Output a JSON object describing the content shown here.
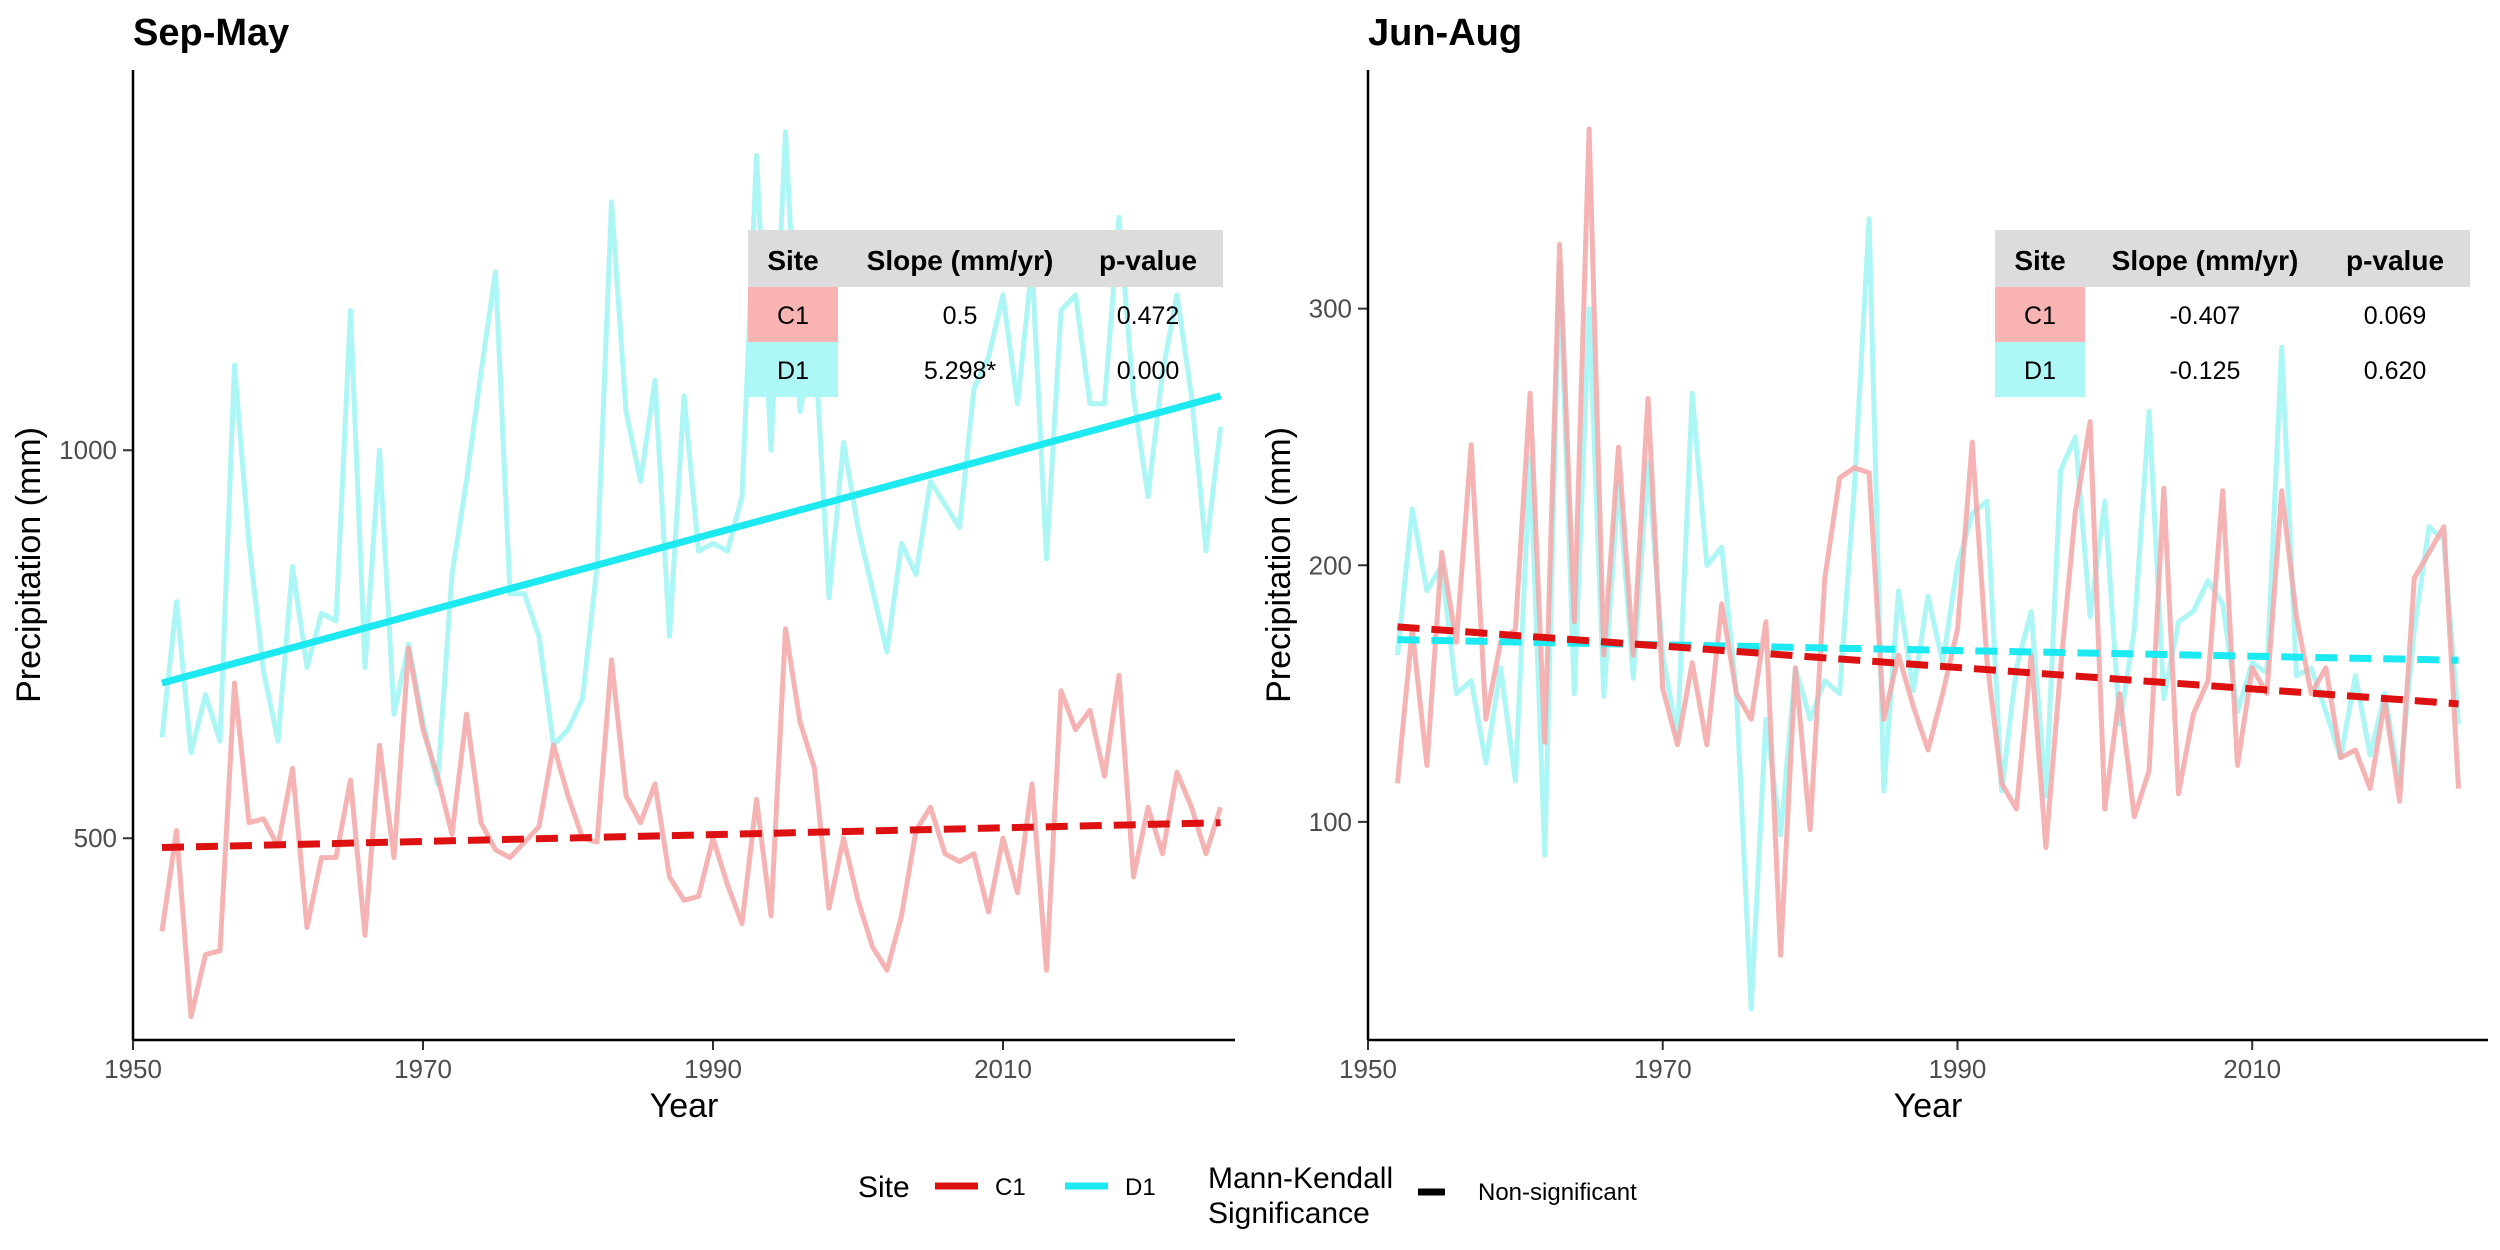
{
  "colors": {
    "c1_line": "#f4a6a6",
    "d1_line": "#9ff4f4",
    "c1_trend": "#dd1111",
    "d1_trend": "#1de9f0",
    "c1_cell": "#f9b3b3",
    "d1_cell": "#aef7f7",
    "header_cell": "#dcdcdc",
    "axis": "#000000"
  },
  "legend": {
    "site_title": "Site",
    "site_items": [
      "C1",
      "D1"
    ],
    "sig_title_line1": "Mann-Kendall",
    "sig_title_line2": "Significance",
    "sig_item": "Non-significant"
  },
  "chart_data": [
    {
      "type": "line",
      "title": "Sep-May",
      "xlabel": "Year",
      "ylabel": "Precipitation (mm)",
      "xlim": [
        1950,
        2026
      ],
      "ylim": [
        240,
        1490
      ],
      "xticks": [
        1950,
        1970,
        1990,
        2010
      ],
      "yticks": [
        500,
        1000
      ],
      "x_start": 1952,
      "series": [
        {
          "name": "C1",
          "values": [
            380,
            510,
            270,
            350,
            355,
            700,
            520,
            525,
            490,
            590,
            385,
            475,
            475,
            575,
            375,
            620,
            475,
            745,
            640,
            580,
            505,
            660,
            520,
            485,
            475,
            495,
            515,
            620,
            555,
            500,
            495,
            730,
            555,
            520,
            570,
            450,
            420,
            425,
            500,
            440,
            390,
            550,
            400,
            770,
            650,
            590,
            410,
            500,
            420,
            360,
            330,
            400,
            510,
            540,
            480,
            470,
            480,
            405,
            500,
            430,
            570,
            330,
            690,
            640,
            665,
            580,
            710,
            450,
            540,
            480,
            585,
            540,
            480,
            540
          ],
          "trend": {
            "start": 488,
            "end": 520,
            "style": "dashed",
            "significant": false
          }
        },
        {
          "name": "D1",
          "values": [
            630,
            805,
            610,
            685,
            625,
            1110,
            880,
            715,
            625,
            850,
            720,
            790,
            780,
            1180,
            720,
            1000,
            660,
            750,
            650,
            570,
            840,
            960,
            1100,
            1230,
            815,
            815,
            760,
            620,
            640,
            680,
            850,
            1320,
            1050,
            960,
            1090,
            760,
            1070,
            870,
            880,
            870,
            940,
            1380,
            1000,
            1410,
            1050,
            1150,
            810,
            1010,
            900,
            820,
            740,
            880,
            840,
            960,
            930,
            900,
            1080,
            1120,
            1200,
            1060,
            1240,
            860,
            1180,
            1200,
            1060,
            1060,
            1300,
            1070,
            940,
            1100,
            1200,
            1070,
            870,
            1030
          ],
          "trend": {
            "start": 700,
            "end": 1070,
            "style": "solid",
            "significant": true
          }
        }
      ],
      "table": {
        "headers": [
          "Site",
          "Slope (mm/yr)",
          "p-value"
        ],
        "rows": [
          {
            "site": "C1",
            "slope": "0.5",
            "p": "0.472"
          },
          {
            "site": "D1",
            "slope": "5.298*",
            "p": "0.000"
          }
        ]
      }
    },
    {
      "type": "line",
      "title": "Jun-Aug",
      "xlabel": "Year",
      "ylabel": "Precipitation (mm)",
      "xlim": [
        1950,
        2026
      ],
      "ylim": [
        15,
        393
      ],
      "xticks": [
        1950,
        1970,
        1990,
        2010
      ],
      "yticks": [
        100,
        200,
        300
      ],
      "x_start": 1952,
      "series": [
        {
          "name": "C1",
          "values": [
            115,
            175,
            122,
            205,
            170,
            247,
            140,
            170,
            175,
            267,
            131,
            325,
            178,
            370,
            165,
            246,
            165,
            265,
            152,
            130,
            162,
            130,
            185,
            150,
            140,
            178,
            48,
            160,
            97,
            195,
            234,
            238,
            236,
            140,
            165,
            145,
            128,
            150,
            175,
            248,
            163,
            115,
            105,
            165,
            90,
            160,
            221,
            256,
            105,
            150,
            102,
            120,
            230,
            111,
            142,
            155,
            229,
            122,
            160,
            150,
            229,
            180,
            150,
            160,
            125,
            128,
            113,
            147,
            108,
            195,
            205,
            215,
            113
          ],
          "trend": {
            "start": 176,
            "end": 146,
            "style": "dashed",
            "significant": false
          }
        },
        {
          "name": "D1",
          "values": [
            165,
            222,
            190,
            200,
            150,
            155,
            123,
            160,
            116,
            242,
            87,
            318,
            150,
            300,
            149,
            232,
            156,
            240,
            165,
            133,
            267,
            200,
            207,
            150,
            27,
            140,
            95,
            160,
            140,
            155,
            150,
            230,
            335,
            112,
            190,
            151,
            188,
            162,
            200,
            220,
            225,
            112,
            160,
            182,
            110,
            237,
            250,
            180,
            225,
            138,
            175,
            260,
            148,
            178,
            182,
            194,
            185,
            143,
            162,
            158,
            285,
            157,
            160,
            143,
            125,
            157,
            126,
            150,
            115,
            175,
            215,
            210,
            138
          ],
          "trend": {
            "start": 171,
            "end": 163,
            "style": "dashed",
            "significant": false
          }
        }
      ],
      "table": {
        "headers": [
          "Site",
          "Slope (mm/yr)",
          "p-value"
        ],
        "rows": [
          {
            "site": "C1",
            "slope": "-0.407",
            "p": "0.069"
          },
          {
            "site": "D1",
            "slope": "-0.125",
            "p": "0.620"
          }
        ]
      }
    }
  ]
}
